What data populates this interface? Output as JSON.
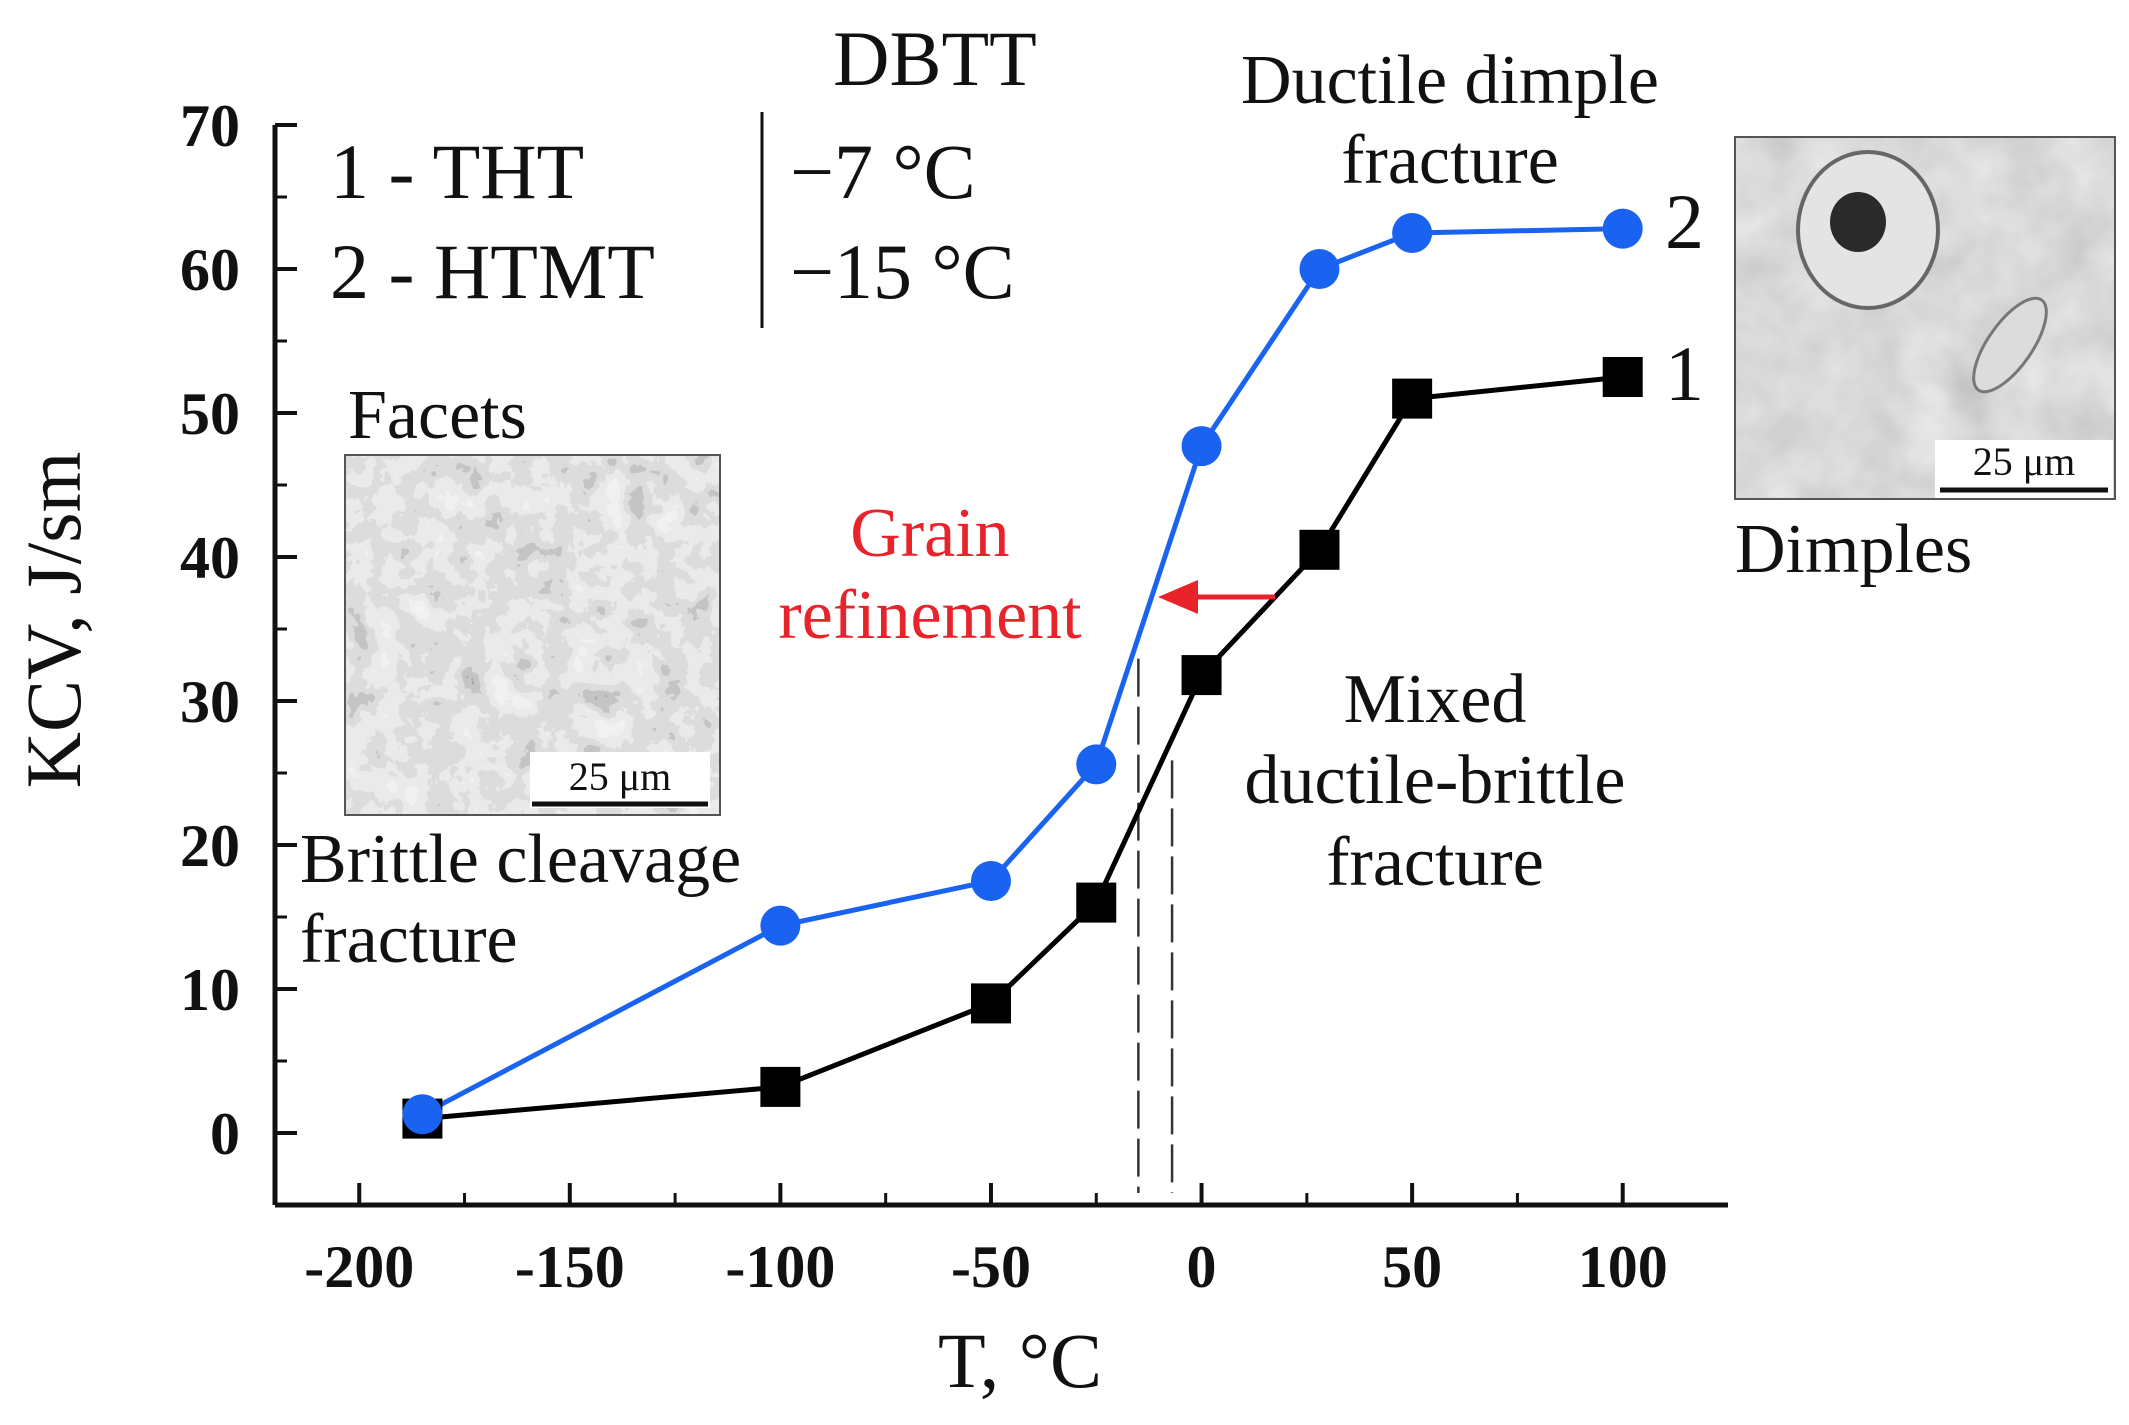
{
  "chart_data": {
    "type": "line",
    "xlabel": "T, °C",
    "ylabel": "KCV, J/sm",
    "xlim": [
      -220,
      125
    ],
    "ylim": [
      -5,
      70
    ],
    "xticks": [
      -200,
      -150,
      -100,
      -50,
      0,
      50,
      100
    ],
    "yticks": [
      0,
      10,
      20,
      30,
      40,
      50,
      60,
      70
    ],
    "grid": false,
    "series": [
      {
        "name": "1",
        "marker": "square",
        "color": "#000000",
        "x": [
          -185,
          -100,
          -50,
          -25,
          0,
          28,
          50,
          100
        ],
        "y": [
          1,
          3.2,
          9,
          16,
          31.8,
          40.5,
          51,
          52.5
        ]
      },
      {
        "name": "2",
        "marker": "circle",
        "color": "#1a63f0",
        "x": [
          -185,
          -100,
          -50,
          -25,
          0,
          28,
          50,
          100
        ],
        "y": [
          1.3,
          14.4,
          17.5,
          25.6,
          47.7,
          60,
          62.5,
          62.8
        ]
      }
    ],
    "dbtt_lines": [
      {
        "series": "2",
        "x": -15
      },
      {
        "series": "1",
        "x": -7
      }
    ],
    "legend": {
      "header": "DBTT",
      "rows": [
        {
          "label": "1 - THT",
          "value": "−7 °C"
        },
        {
          "label": "2 - HTMT",
          "value": "−15 °C"
        }
      ]
    },
    "annotations": {
      "ductile_title_1": "Ductile dimple",
      "ductile_title_2": "fracture",
      "grain_1": "Grain",
      "grain_2": "refinement",
      "mixed_1": "Mixed",
      "mixed_2": "ductile-brittle",
      "mixed_3": "fracture",
      "brittle_1": "Brittle cleavage",
      "brittle_2": "fracture",
      "facets": "Facets",
      "dimples": "Dimples",
      "scale_left": "25 μm",
      "scale_right": "25 μm"
    }
  }
}
